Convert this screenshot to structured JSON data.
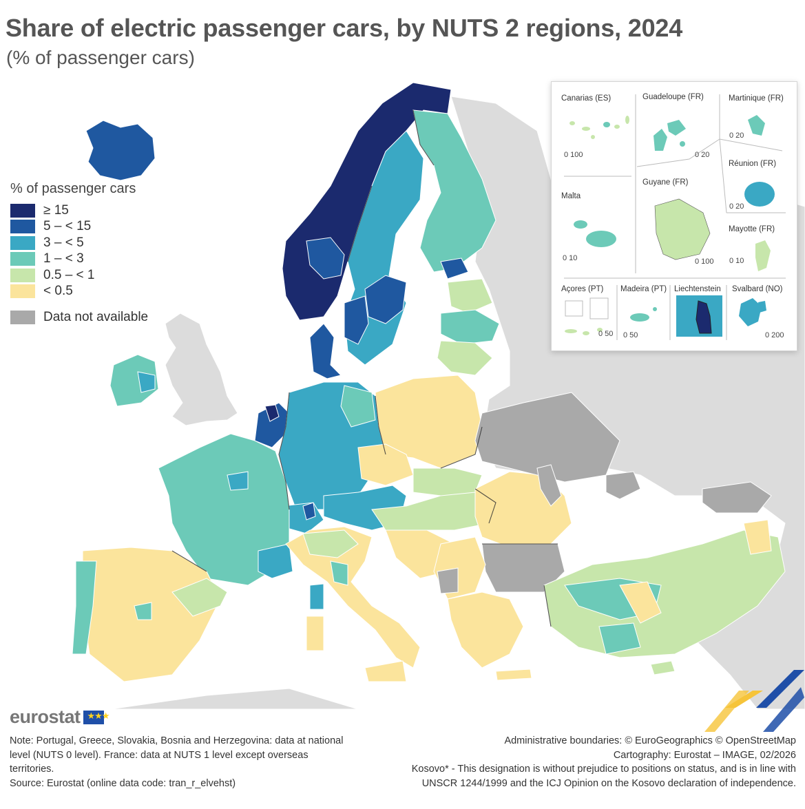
{
  "title": "Share of electric passenger cars, by NUTS 2 regions, 2024",
  "subtitle": "(% of passenger cars)",
  "legend": {
    "title": "% of passenger cars",
    "items": [
      {
        "label": "≥ 15",
        "color": "#1b2a6e"
      },
      {
        "label": "5 – < 15",
        "color": "#1f58a0"
      },
      {
        "label": "3 – < 5",
        "color": "#3aa8c4"
      },
      {
        "label": "1 – < 3",
        "color": "#6ccab8"
      },
      {
        "label": "0.5 – < 1",
        "color": "#c7e6ab"
      },
      {
        "label": "< 0.5",
        "color": "#fbe49c"
      }
    ],
    "na": {
      "label": "Data not available",
      "color": "#a9a9a9"
    }
  },
  "insets": [
    {
      "name": "Canarias (ES)",
      "scale": "0  100"
    },
    {
      "name": "Guadeloupe (FR)",
      "scale": "0  20"
    },
    {
      "name": "Martinique (FR)",
      "scale": "0  20"
    },
    {
      "name": "Réunion (FR)",
      "scale": "0  20"
    },
    {
      "name": "Malta",
      "scale": "0  10"
    },
    {
      "name": "Guyane (FR)",
      "scale": "0    100"
    },
    {
      "name": "Mayotte (FR)",
      "scale": "0 10"
    },
    {
      "name": "Açores (PT)",
      "scale": "0 50"
    },
    {
      "name": "Madeira (PT)",
      "scale": "0     50"
    },
    {
      "name": "Liechtenstein",
      "scale": ""
    },
    {
      "name": "Svalbard (NO)",
      "scale": "0    200"
    }
  ],
  "brand": "eurostat",
  "notes_left": [
    "Note: Portugal, Greece, Slovakia, Bosnia and Herzegovina: data at national",
    "level (NUTS 0 level). France: data at NUTS 1 level except overseas",
    "territories.",
    "Source: Eurostat (online data code: tran_r_elvehst)"
  ],
  "notes_right": [
    "Administrative boundaries: © EuroGeographics © OpenStreetMap",
    "Cartography: Eurostat – IMAGE, 02/2026",
    "Kosovo* - This designation is without prejudice to positions on status, and is in line with",
    "UNSCR 1244/1999 and the ICJ Opinion on the Kosovo declaration of independence."
  ]
}
